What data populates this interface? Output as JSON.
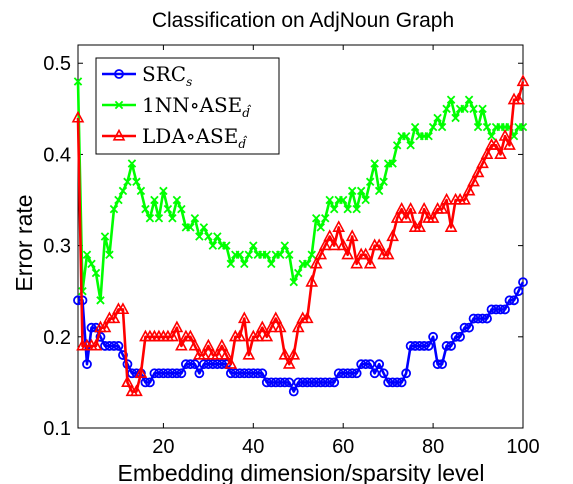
{
  "chart_data": {
    "type": "line",
    "title": "Classification on AdjNoun Graph",
    "xlabel": "Embedding dimension/sparsity level",
    "ylabel": "Error rate",
    "xlim": [
      1,
      100
    ],
    "ylim": [
      0.1,
      0.52
    ],
    "xticks": [
      20,
      40,
      60,
      80,
      100
    ],
    "yticks": [
      0.1,
      0.2,
      0.3,
      0.4,
      0.5
    ],
    "xtick_labels": [
      "20",
      "40",
      "60",
      "80",
      "100"
    ],
    "ytick_labels": [
      "0.1",
      "0.2",
      "0.3",
      "0.4",
      "0.5"
    ],
    "grid": false,
    "legend_position": "top-left",
    "x": [
      1,
      2,
      3,
      4,
      5,
      6,
      7,
      8,
      9,
      10,
      11,
      12,
      13,
      14,
      15,
      16,
      17,
      18,
      19,
      20,
      21,
      22,
      23,
      24,
      25,
      26,
      27,
      28,
      29,
      30,
      31,
      32,
      33,
      34,
      35,
      36,
      37,
      38,
      39,
      40,
      41,
      42,
      43,
      44,
      45,
      46,
      47,
      48,
      49,
      50,
      51,
      52,
      53,
      54,
      55,
      56,
      57,
      58,
      59,
      60,
      61,
      62,
      63,
      64,
      65,
      66,
      67,
      68,
      69,
      70,
      71,
      72,
      73,
      74,
      75,
      76,
      77,
      78,
      79,
      80,
      81,
      82,
      83,
      84,
      85,
      86,
      87,
      88,
      89,
      90,
      91,
      92,
      93,
      94,
      95,
      96,
      97,
      98,
      99,
      100
    ],
    "series": [
      {
        "name": "SRC",
        "legend_main": "SRC",
        "legend_sub": "s",
        "color": "#0000ff",
        "marker": "circle",
        "values": [
          0.24,
          0.24,
          0.17,
          0.21,
          0.21,
          0.2,
          0.19,
          0.19,
          0.19,
          0.19,
          0.18,
          0.17,
          0.16,
          0.16,
          0.16,
          0.15,
          0.15,
          0.16,
          0.16,
          0.16,
          0.16,
          0.16,
          0.16,
          0.16,
          0.17,
          0.17,
          0.17,
          0.16,
          0.17,
          0.17,
          0.17,
          0.17,
          0.17,
          0.17,
          0.16,
          0.16,
          0.16,
          0.16,
          0.16,
          0.16,
          0.16,
          0.16,
          0.15,
          0.15,
          0.15,
          0.15,
          0.15,
          0.15,
          0.14,
          0.15,
          0.15,
          0.15,
          0.15,
          0.15,
          0.15,
          0.15,
          0.15,
          0.15,
          0.16,
          0.16,
          0.16,
          0.16,
          0.16,
          0.17,
          0.17,
          0.17,
          0.16,
          0.17,
          0.16,
          0.15,
          0.15,
          0.15,
          0.15,
          0.16,
          0.19,
          0.19,
          0.19,
          0.19,
          0.19,
          0.2,
          0.17,
          0.17,
          0.19,
          0.19,
          0.2,
          0.2,
          0.21,
          0.21,
          0.22,
          0.22,
          0.22,
          0.22,
          0.23,
          0.23,
          0.23,
          0.23,
          0.24,
          0.24,
          0.25,
          0.26
        ]
      },
      {
        "name": "1NN∘ASE",
        "legend_main": "1NN∘ASE",
        "legend_sub": "d̂",
        "color": "#00ff00",
        "marker": "x",
        "values": [
          0.48,
          0.25,
          0.29,
          0.28,
          0.27,
          0.24,
          0.31,
          0.29,
          0.34,
          0.35,
          0.36,
          0.37,
          0.39,
          0.37,
          0.36,
          0.34,
          0.33,
          0.35,
          0.33,
          0.36,
          0.34,
          0.33,
          0.35,
          0.34,
          0.32,
          0.32,
          0.33,
          0.31,
          0.32,
          0.31,
          0.3,
          0.31,
          0.3,
          0.3,
          0.28,
          0.29,
          0.29,
          0.28,
          0.29,
          0.3,
          0.29,
          0.29,
          0.29,
          0.28,
          0.29,
          0.29,
          0.3,
          0.29,
          0.26,
          0.27,
          0.28,
          0.28,
          0.29,
          0.33,
          0.32,
          0.33,
          0.35,
          0.34,
          0.35,
          0.35,
          0.34,
          0.36,
          0.34,
          0.36,
          0.35,
          0.37,
          0.39,
          0.36,
          0.37,
          0.39,
          0.39,
          0.41,
          0.42,
          0.42,
          0.41,
          0.43,
          0.42,
          0.42,
          0.42,
          0.43,
          0.44,
          0.43,
          0.45,
          0.46,
          0.44,
          0.45,
          0.45,
          0.46,
          0.45,
          0.43,
          0.45,
          0.43,
          0.42,
          0.43,
          0.43,
          0.43,
          0.43,
          0.42,
          0.43,
          0.43
        ]
      },
      {
        "name": "LDA∘ASE",
        "legend_main": "LDA∘ASE",
        "legend_sub": "d̂",
        "color": "#ff0000",
        "marker": "triangle",
        "values": [
          0.44,
          0.19,
          0.19,
          0.19,
          0.19,
          0.21,
          0.21,
          0.22,
          0.22,
          0.23,
          0.23,
          0.15,
          0.14,
          0.14,
          0.16,
          0.2,
          0.2,
          0.2,
          0.2,
          0.2,
          0.2,
          0.2,
          0.21,
          0.19,
          0.2,
          0.2,
          0.19,
          0.18,
          0.18,
          0.19,
          0.18,
          0.18,
          0.19,
          0.18,
          0.17,
          0.2,
          0.2,
          0.22,
          0.18,
          0.2,
          0.2,
          0.21,
          0.2,
          0.21,
          0.22,
          0.21,
          0.18,
          0.17,
          0.18,
          0.21,
          0.22,
          0.22,
          0.26,
          0.28,
          0.29,
          0.3,
          0.31,
          0.3,
          0.32,
          0.3,
          0.29,
          0.31,
          0.28,
          0.29,
          0.29,
          0.28,
          0.3,
          0.3,
          0.29,
          0.29,
          0.31,
          0.33,
          0.34,
          0.33,
          0.34,
          0.32,
          0.32,
          0.34,
          0.33,
          0.33,
          0.34,
          0.34,
          0.35,
          0.32,
          0.35,
          0.35,
          0.35,
          0.36,
          0.37,
          0.38,
          0.39,
          0.4,
          0.41,
          0.41,
          0.4,
          0.42,
          0.41,
          0.46,
          0.46,
          0.48
        ]
      }
    ]
  }
}
